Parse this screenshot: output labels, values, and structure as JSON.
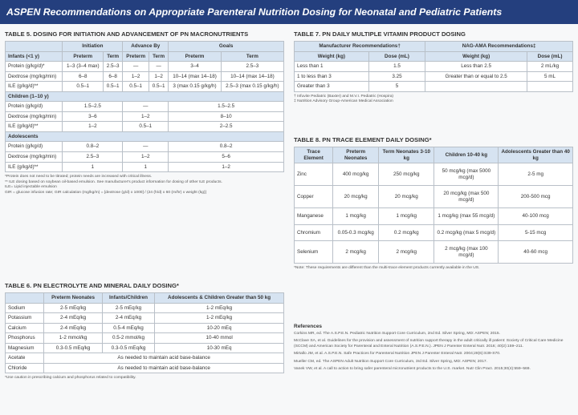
{
  "header": {
    "title": "ASPEN Recommendations on Appropriate Parenteral Nutrition Dosing for Neonatal and Pediatric Patients"
  },
  "table5": {
    "title": "TABLE 5. DOSING FOR INITIATION AND ADVANCEMENT OF PN MACRONUTRIENTS",
    "group_header": [
      "Initiation",
      "Advance By",
      "Goals"
    ],
    "subheader": [
      "Preterm",
      "Term",
      "Preterm",
      "Term",
      "Preterm",
      "Term"
    ],
    "groups": [
      {
        "heading": "Infants (<1 y)",
        "rows": [
          [
            "Protein (g/kg/d)*",
            "1–3 (3–4 max)",
            "2.5–3",
            "—",
            "—",
            "3–4",
            "2.5–3"
          ],
          [
            "Dextrose (mg/kg/min)",
            "6–8",
            "6–8",
            "1–2",
            "1–2",
            "10–14 (max 14–18)",
            "10–14 (max 14–18)"
          ],
          [
            "ILE (g/kg/d)**",
            "0.5–1",
            "0.5–1",
            "0.5–1",
            "0.5–1",
            "3 (max 0.15 g/kg/h)",
            "2.5–3 (max 0.15 g/kg/h)"
          ]
        ]
      },
      {
        "heading": "Children (1–10 y)",
        "rows": [
          [
            "Protein (g/kg/d)",
            "1.5–2.5",
            "—",
            "1.5–2.5"
          ],
          [
            "Dextrose (mg/kg/min)",
            "3–6",
            "1–2",
            "8–10"
          ],
          [
            "ILE (g/kg/d)**",
            "1–2",
            "0.5–1",
            "2–2.5"
          ]
        ]
      },
      {
        "heading": "Adolescents",
        "rows": [
          [
            "Protein (g/kg/d)",
            "0.8–2",
            "—",
            "0.8–2"
          ],
          [
            "Dextrose (mg/kg/min)",
            "2.5–3",
            "1–2",
            "5–6"
          ],
          [
            "ILE (g/kg/d)**",
            "1",
            "1",
            "1–2"
          ]
        ]
      }
    ],
    "footnotes": [
      "*Protein does not need to be titrated; protein needs are increased with critical illness.",
      "** ILE dosing based on soybean oil-based emulsion. See manufacturer's product information for dosing of other ILE products.",
      "ILE= Lipid injectable emulsion",
      "GIR = glucose infusion rate; GIR calculation (mg/kg/m) = [dextrose (g/d) x 1000] / (24 (h/d) x 60 (m/hr) x weight (kg)]"
    ]
  },
  "table6": {
    "title": "TABLE 6. PN ELECTROLYTE AND MINERAL DAILY DOSING*",
    "columns": [
      null,
      "Preterm Neonates",
      "Infants/Children",
      "Adolescents & Children Greater than 50 kg"
    ],
    "rows": [
      [
        "Sodium",
        "2-5 mEq/kg",
        "2-5 mEq/kg",
        "1-2 mEq/kg"
      ],
      [
        "Potassium",
        "2-4 mEq/kg",
        "2-4 mEq/kg",
        "1-2 mEq/kg"
      ],
      [
        "Calcium",
        "2-4 mEq/kg",
        "0.5-4 mEq/kg",
        "10-20 mEq"
      ],
      [
        "Phosphorus",
        "1-2 mmol/kg",
        "0.5-2 mmol/kg",
        "10-40 mmol"
      ],
      [
        "Magnesium",
        "0.3-0.5 mEq/kg",
        "0.3-0.5 mEq/kg",
        "10-30 mEq"
      ],
      [
        "Acetate",
        "As needed to maintain acid base-balance"
      ],
      [
        "Chloride",
        "As needed to maintain acid base-balance"
      ]
    ],
    "footnotes": [
      "*Use caution in prescribing calcium and phosphorus related to compatibility."
    ]
  },
  "table7": {
    "title": "TABLE 7. PN DAILY MULTIPLE VITAMIN PRODUCT DOSING",
    "group_header": [
      "Manufacturer Recommendations†",
      "NAG-AMA Recommendations‡"
    ],
    "columns": [
      "Weight (kg)",
      "Dose (mL)",
      "Weight (kg)",
      "Dose (mL)"
    ],
    "rows": [
      [
        "Less than 1",
        "1.5",
        "Less than 2.5",
        "2 mL/kg"
      ],
      [
        "1 to less than 3",
        "3.25",
        "Greater than or equal to 2.5",
        "5 mL"
      ],
      [
        "Greater than 3",
        "5",
        null,
        null
      ]
    ],
    "footnotes": [
      "† Infuvite Pediatric (Baxter) and M.V.I. Pediatric (Hospira)",
      "‡ Nutrition Advisory Group-American Medical Association"
    ]
  },
  "table8": {
    "title": "TABLE 8. PN TRACE ELEMENT DAILY DOSING*",
    "columns": [
      "Trace Element",
      "Preterm Neonates",
      "Term Neonates 3-10 kg",
      "Children 10-40 kg",
      "Adolescents Greater than 40 kg"
    ],
    "rows": [
      [
        "Zinc",
        "400 mcg/kg",
        "250 mcg/kg",
        "50 mcg/kg (max 5000 mcg/d)",
        "2-5 mg"
      ],
      [
        "Copper",
        "20 mcg/kg",
        "20 mcg/kg",
        "20 mcg/kg (max 500 mcg/d)",
        "200-500 mcg"
      ],
      [
        "Manganese",
        "1 mcg/kg",
        "1 mcg/kg",
        "1 mcg/kg (max 55 mcg/d)",
        "40-100 mcg"
      ],
      [
        "Chromium",
        "0.05-0.3 mcg/kg",
        "0.2 mcg/kg",
        "0.2 mcg/kg (max 5 mcg/d)",
        "5-15 mcg"
      ],
      [
        "Selenium",
        "2 mcg/kg",
        "2 mcg/kg",
        "2 mcg/kg (max 100 mcg/d)",
        "40-60 mcg"
      ]
    ],
    "footnotes": [
      "*Note: These requirements are different than the multi-trace element products currently available in the US."
    ]
  },
  "references": {
    "title": "References",
    "items": [
      "Corkins MR, ed. The A.S.P.E.N. Pediatric Nutrition Support Core Curriculum, 2nd Ed. Silver Spring, MD: ASPEN; 2015.",
      "McClave SA, et al. Guidelines for the provision and assessment of nutrition support therapy in the adult critically ill patient: Society of Critical Care Medicine (SCCM) and American Society for Parenteral and Enteral Nutrition (A.S.P.E.N.). JPEN J Parenter Enteral Nutr. 2016; 40(2):159–211.",
      "Mirtallo JM, et al. A.S.P.E.N. Safe Practices for Parenteral Nutrition JPEN J Parenter Enteral Nutr. 2004;28(6):S39-S70.",
      "Mueller CM, ed. The ASPEN Adult Nutrition Support Core Curriculum, 3rd Ed. Silver Spring, MD: ASPEN; 2017.",
      "Vanek VW, et al. A call to action to bring safer parenteral micronutrient products to the U.S. market. Nutr Clin Pract. 2015;30(4):559–569."
    ]
  }
}
